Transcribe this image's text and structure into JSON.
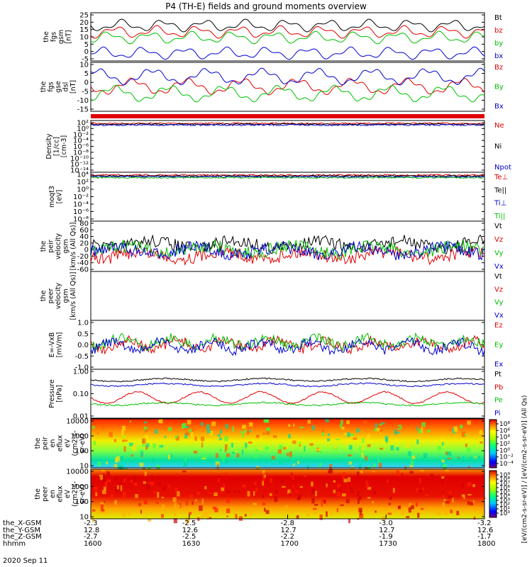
{
  "title": "P4 (TH-E) fields and ground moments overview",
  "date": "2020 Sep 11",
  "x_ticks": {
    "positions": [
      1600,
      1630,
      1700,
      1730,
      1800
    ],
    "rows": [
      {
        "name": "the_X-GSM",
        "values": [
          "-2.3",
          "-2.5",
          "-2.8",
          "-3.0",
          "-3.2"
        ]
      },
      {
        "name": "the_Y-GSM",
        "values": [
          "12.8",
          "12.6",
          "12.7",
          "12.7",
          "12.6"
        ]
      },
      {
        "name": "the_Z-GSM",
        "values": [
          "-2.7",
          "-2.5",
          "-2.2",
          "-1.9",
          "-1.7"
        ]
      },
      {
        "name": "hhmm",
        "values": [
          "1600",
          "1630",
          "1700",
          "1730",
          "1800"
        ]
      }
    ]
  },
  "colorbar": {
    "label": "[eV/(cm2-s-sr-eV)] / [eV/(cm2-s-sr-eV)] (All Qs)",
    "upper_ticks": [
      "10⁸",
      "10⁶",
      "10⁴",
      "10²",
      "10⁰",
      "10⁻²",
      "10⁻⁴"
    ],
    "lower_ticks": [
      "10⁹",
      "10⁸",
      "10⁷",
      "10⁶",
      "10⁵",
      "10⁴",
      "10³",
      "10²",
      "10¹",
      "10⁰"
    ]
  },
  "chart_data": [
    {
      "type": "line",
      "id": "fgs_gsm",
      "ylabel": [
        "the",
        "fgs",
        "gsm",
        "[nT]"
      ],
      "yticks": [
        "25",
        "20",
        "15",
        "10",
        "5",
        "0",
        "-5"
      ],
      "ylim": [
        -5,
        26
      ],
      "series": [
        {
          "name": "Bt",
          "color": "#000000"
        },
        {
          "name": "bz",
          "color": "#e00000"
        },
        {
          "name": "by",
          "color": "#00c000"
        },
        {
          "name": "bx",
          "color": "#0000d0"
        }
      ]
    },
    {
      "type": "line",
      "id": "fgs_dsl",
      "ylabel": [
        "the",
        "fgs",
        "gse",
        "dsl",
        "[nT]"
      ],
      "yticks": [
        "10",
        "5",
        "0",
        "-5",
        "-10",
        "-15"
      ],
      "ylim": [
        -18,
        12
      ],
      "series": [
        {
          "name": "Bz",
          "color": "#e00000"
        },
        {
          "name": "By",
          "color": "#00c000"
        },
        {
          "name": "Bx",
          "color": "#0000d0"
        }
      ]
    },
    {
      "type": "line",
      "id": "density",
      "ylabel": [
        "Density",
        "[1/cc]",
        "[cm-3]"
      ],
      "yticks": [
        "10²",
        "10⁰",
        "10⁻²",
        "10⁻⁴",
        "10⁻⁶",
        "10⁻⁸",
        "10⁻¹⁰",
        "10⁻¹²",
        "10⁻¹⁴"
      ],
      "log": true,
      "series": [
        {
          "name": "Ne",
          "color": "#e00000"
        },
        {
          "name": "Ni",
          "color": "#000000"
        },
        {
          "name": "Npot",
          "color": "#0000d0"
        }
      ]
    },
    {
      "type": "line",
      "id": "temperature",
      "ylabel": [
        "moqt3",
        "[eV]"
      ],
      "yticks": [
        "10⁴",
        "10²",
        "10⁰",
        "10⁻²",
        "10⁻⁴",
        "10⁻⁶",
        "10⁻⁸"
      ],
      "log": true,
      "series": [
        {
          "name": "Te⊥",
          "color": "#e00000"
        },
        {
          "name": "Te||",
          "color": "#000000"
        },
        {
          "name": "Ti⊥",
          "color": "#0000d0"
        },
        {
          "name": "Ti||",
          "color": "#00c000"
        }
      ]
    },
    {
      "type": "line",
      "id": "peir_velocity",
      "ylabel": [
        "the",
        "peir",
        "velocity",
        "gsm",
        "[km/s (All Qs)]"
      ],
      "yticks": [
        "80",
        "60",
        "40",
        "20",
        "0",
        "-20",
        "-40",
        "-60"
      ],
      "ylim": [
        -60,
        80
      ],
      "series": [
        {
          "name": "Vt",
          "color": "#000000"
        },
        {
          "name": "Vz",
          "color": "#e00000"
        },
        {
          "name": "Vy",
          "color": "#00c000"
        },
        {
          "name": "Vx",
          "color": "#0000d0"
        }
      ]
    },
    {
      "type": "line",
      "id": "peer_velocity",
      "ylabel": [
        "the",
        "peer",
        "velocity",
        "gsm",
        "[km/s (All Qs)]"
      ],
      "yticks": [],
      "series": [
        {
          "name": "Vt",
          "color": "#000000"
        },
        {
          "name": "Vz",
          "color": "#e00000"
        },
        {
          "name": "Vy",
          "color": "#00c000"
        },
        {
          "name": "Vx",
          "color": "#0000d0"
        }
      ]
    },
    {
      "type": "line",
      "id": "efield",
      "ylabel": [
        "E=-VxB",
        "[mV/m]"
      ],
      "yticks": [
        "1.0",
        "0.5",
        "0.0",
        "-0.5",
        "-1.0"
      ],
      "ylim": [
        -1,
        1
      ],
      "series": [
        {
          "name": "Ez",
          "color": "#e00000"
        },
        {
          "name": "Ey",
          "color": "#00c000"
        },
        {
          "name": "Ex",
          "color": "#0000d0"
        }
      ]
    },
    {
      "type": "line",
      "id": "pressure",
      "ylabel": [
        "Pressure",
        "[nPa]"
      ],
      "yticks": [
        "1.00",
        "0.10",
        "0.01"
      ],
      "log": true,
      "series": [
        {
          "name": "Pt",
          "color": "#000000"
        },
        {
          "name": "Pb",
          "color": "#e00000"
        },
        {
          "name": "Pe",
          "color": "#00c000"
        },
        {
          "name": "Pi",
          "color": "#0000d0"
        }
      ]
    },
    {
      "type": "heatmap",
      "id": "peir_eflux",
      "ylabel": [
        "the",
        "peir",
        "en",
        "eflux",
        "eV",
        "(cm2-s-",
        "sr-eV)"
      ],
      "yticks": [
        "10000",
        "1000",
        "100",
        "10"
      ]
    },
    {
      "type": "heatmap",
      "id": "peer_eflux",
      "ylabel": [
        "the",
        "peer",
        "en",
        "eflux",
        "eV",
        "(cm2-s-",
        "sr-eV)"
      ],
      "yticks": [
        "10000",
        "1000",
        "100",
        "10"
      ]
    }
  ]
}
